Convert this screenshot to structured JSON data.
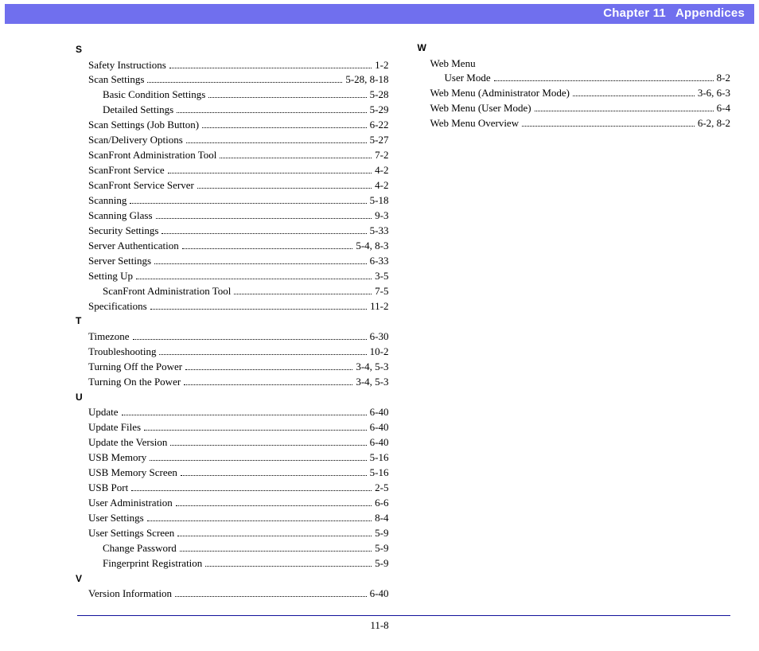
{
  "header": {
    "chapter": "Chapter 11",
    "title": "Appendices"
  },
  "page_number": "11-8",
  "colors": {
    "header_bg": "#706fee",
    "header_text": "#ffffff",
    "footer_line": "#12129b"
  },
  "sections": [
    {
      "letter": "S",
      "entries": [
        {
          "label": "Safety Instructions",
          "page": "1-2"
        },
        {
          "label": "Scan Settings",
          "page": "5-28, 8-18"
        },
        {
          "label": "Basic Condition Settings",
          "page": "5-28",
          "indent": 1
        },
        {
          "label": "Detailed Settings",
          "page": "5-29",
          "indent": 1
        },
        {
          "label": "Scan Settings (Job Button)",
          "page": "6-22"
        },
        {
          "label": "Scan/Delivery Options",
          "page": "5-27"
        },
        {
          "label": "ScanFront Administration Tool",
          "page": "7-2"
        },
        {
          "label": "ScanFront Service",
          "page": "4-2"
        },
        {
          "label": "ScanFront Service Server",
          "page": "4-2"
        },
        {
          "label": "Scanning",
          "page": "5-18"
        },
        {
          "label": "Scanning Glass",
          "page": "9-3"
        },
        {
          "label": "Security Settings",
          "page": "5-33"
        },
        {
          "label": "Server Authentication",
          "page": "5-4, 8-3"
        },
        {
          "label": "Server Settings",
          "page": "6-33"
        },
        {
          "label": "Setting Up",
          "page": "3-5"
        },
        {
          "label": "ScanFront Administration Tool",
          "page": "7-5",
          "indent": 1
        },
        {
          "label": "Specifications",
          "page": "11-2"
        }
      ]
    },
    {
      "letter": "T",
      "entries": [
        {
          "label": "Timezone",
          "page": "6-30"
        },
        {
          "label": "Troubleshooting",
          "page": "10-2"
        },
        {
          "label": "Turning Off the Power",
          "page": "3-4, 5-3"
        },
        {
          "label": "Turning On the Power",
          "page": "3-4, 5-3"
        }
      ]
    },
    {
      "letter": "U",
      "entries": [
        {
          "label": "Update",
          "page": "6-40"
        },
        {
          "label": "Update Files",
          "page": "6-40"
        },
        {
          "label": "Update the Version",
          "page": "6-40"
        },
        {
          "label": "USB Memory",
          "page": "5-16"
        },
        {
          "label": "USB Memory Screen",
          "page": "5-16"
        },
        {
          "label": "USB Port",
          "page": "2-5"
        },
        {
          "label": "User Administration",
          "page": "6-6"
        },
        {
          "label": "User Settings",
          "page": "8-4"
        },
        {
          "label": "User Settings Screen",
          "page": "5-9"
        },
        {
          "label": "Change Password",
          "page": "5-9",
          "indent": 1
        },
        {
          "label": "Fingerprint Registration",
          "page": "5-9",
          "indent": 1
        }
      ]
    },
    {
      "letter": "V",
      "entries": [
        {
          "label": "Version Information",
          "page": "6-40"
        }
      ]
    },
    {
      "letter": "W",
      "entries": [
        {
          "label": "Web Menu",
          "page": ""
        },
        {
          "label": "User Mode",
          "page": "8-2",
          "indent": 1
        },
        {
          "label": "Web Menu (Administrator Mode)",
          "page": "3-6, 6-3"
        },
        {
          "label": "Web Menu (User Mode)",
          "page": "6-4"
        },
        {
          "label": "Web Menu Overview",
          "page": "6-2, 8-2"
        }
      ]
    }
  ]
}
